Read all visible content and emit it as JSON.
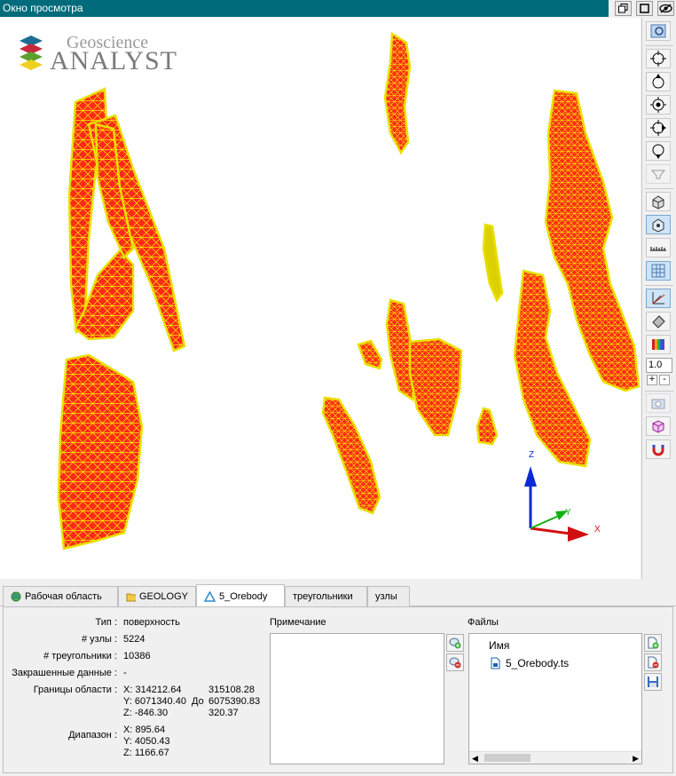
{
  "window": {
    "title": "Окно просмотра"
  },
  "logo": {
    "line1": "Geoscience",
    "line2": "ANALYST"
  },
  "axes": {
    "z": "Z",
    "y": "Y",
    "x": "X"
  },
  "toolbar": {
    "zoom_value": "1.0",
    "plus": "+",
    "minus": "-"
  },
  "tabs": [
    {
      "label": "Рабочая область",
      "icon": "workspace-globe-icon"
    },
    {
      "label": "GEOLOGY",
      "icon": "folder-icon"
    },
    {
      "label": "5_Orebody",
      "icon": "triangle-icon"
    },
    {
      "label": "треугольники",
      "icon": ""
    },
    {
      "label": "узлы",
      "icon": ""
    }
  ],
  "props": {
    "type_label": "Тип :",
    "type_value": "поверхность",
    "nodes_label": "# узлы :",
    "nodes_value": "5224",
    "tris_label": "# треугольники :",
    "tris_value": "10386",
    "shaded_label": "Закрашенные данные :",
    "shaded_value": "-",
    "bounds_label": "Границы области :",
    "bx_min": "X: 314212.64",
    "bx_max": "315108.28",
    "by_min": "Y: 6071340.40",
    "by_to": "До",
    "by_max": "6075390.83",
    "bz_min": "Z: -846.30",
    "bz_max": "320.37",
    "range_label": "Диапазон :",
    "rx": "X: 895.64",
    "ry": "Y: 4050.43",
    "rz": "Z: 1166.67"
  },
  "notes": {
    "header": "Примечание"
  },
  "files": {
    "header": "Файлы",
    "col_name": "Имя",
    "items": [
      "5_Orebody.ts"
    ]
  },
  "colors": {
    "title_bar": "#006b7a",
    "body_fill": "#ff2a1a",
    "mesh": "#f5f000",
    "accent_blue": "#0a2ad8"
  }
}
